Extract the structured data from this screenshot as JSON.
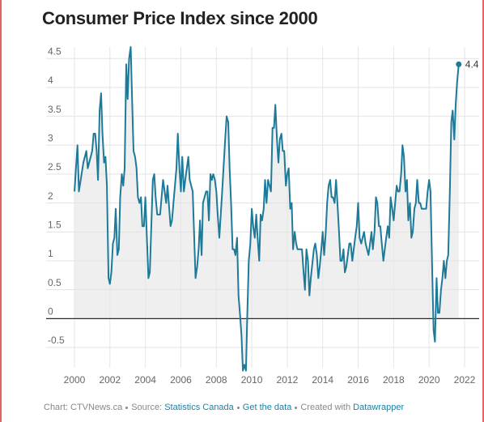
{
  "chart_data": {
    "type": "line",
    "title": "Consumer Price Index since 2000",
    "x": [
      2000.0,
      2000.17,
      2000.25,
      2000.5,
      2000.67,
      2000.75,
      2001.0,
      2001.08,
      2001.17,
      2001.25,
      2001.33,
      2001.42,
      2001.5,
      2001.58,
      2001.67,
      2001.75,
      2001.83,
      2001.92,
      2002.0,
      2002.08,
      2002.17,
      2002.25,
      2002.33,
      2002.42,
      2002.5,
      2002.58,
      2002.67,
      2002.75,
      2002.83,
      2002.92,
      2003.0,
      2003.08,
      2003.17,
      2003.25,
      2003.33,
      2003.42,
      2003.5,
      2003.58,
      2003.67,
      2003.75,
      2003.83,
      2003.92,
      2004.0,
      2004.17,
      2004.25,
      2004.42,
      2004.5,
      2004.58,
      2004.67,
      2004.83,
      2005.0,
      2005.17,
      2005.25,
      2005.42,
      2005.5,
      2005.58,
      2005.75,
      2005.83,
      2005.92,
      2006.0,
      2006.08,
      2006.17,
      2006.25,
      2006.42,
      2006.5,
      2006.67,
      2006.83,
      2006.92,
      2007.0,
      2007.08,
      2007.17,
      2007.25,
      2007.42,
      2007.5,
      2007.58,
      2007.67,
      2007.75,
      2007.83,
      2007.92,
      2008.0,
      2008.08,
      2008.17,
      2008.33,
      2008.5,
      2008.58,
      2008.67,
      2008.75,
      2008.83,
      2008.92,
      2009.0,
      2009.08,
      2009.17,
      2009.25,
      2009.33,
      2009.42,
      2009.5,
      2009.58,
      2009.67,
      2009.75,
      2009.83,
      2009.92,
      2010.0,
      2010.08,
      2010.17,
      2010.25,
      2010.33,
      2010.42,
      2010.5,
      2010.58,
      2010.67,
      2010.75,
      2010.83,
      2010.92,
      2011.0,
      2011.08,
      2011.17,
      2011.25,
      2011.33,
      2011.42,
      2011.5,
      2011.58,
      2011.67,
      2011.75,
      2011.83,
      2011.92,
      2012.0,
      2012.08,
      2012.17,
      2012.25,
      2012.33,
      2012.42,
      2012.5,
      2012.58,
      2012.67,
      2012.83,
      2012.92,
      2013.0,
      2013.08,
      2013.17,
      2013.25,
      2013.33,
      2013.5,
      2013.58,
      2013.67,
      2013.75,
      2013.83,
      2013.92,
      2014.0,
      2014.08,
      2014.17,
      2014.25,
      2014.33,
      2014.42,
      2014.5,
      2014.58,
      2014.67,
      2014.75,
      2014.83,
      2014.92,
      2015.0,
      2015.08,
      2015.17,
      2015.25,
      2015.33,
      2015.5,
      2015.58,
      2015.67,
      2015.83,
      2015.92,
      2016.0,
      2016.08,
      2016.17,
      2016.33,
      2016.42,
      2016.5,
      2016.58,
      2016.67,
      2016.75,
      2016.83,
      2016.92,
      2017.0,
      2017.08,
      2017.17,
      2017.25,
      2017.33,
      2017.42,
      2017.5,
      2017.58,
      2017.67,
      2017.75,
      2017.83,
      2017.92,
      2018.0,
      2018.17,
      2018.25,
      2018.33,
      2018.42,
      2018.5,
      2018.58,
      2018.67,
      2018.75,
      2018.83,
      2018.92,
      2019.0,
      2019.08,
      2019.17,
      2019.25,
      2019.33,
      2019.42,
      2019.5,
      2019.58,
      2019.67,
      2019.83,
      2019.92,
      2020.0,
      2020.08,
      2020.17,
      2020.25,
      2020.33,
      2020.42,
      2020.5,
      2020.58,
      2020.67,
      2020.75,
      2020.83,
      2020.92,
      2021.0,
      2021.08,
      2021.17,
      2021.25,
      2021.33,
      2021.42,
      2021.5,
      2021.58,
      2021.67
    ],
    "values": [
      2.2,
      3.0,
      2.2,
      2.7,
      2.9,
      2.6,
      2.9,
      3.2,
      3.2,
      2.9,
      2.4,
      3.6,
      3.9,
      3.2,
      2.7,
      2.8,
      2.3,
      0.7,
      0.6,
      0.8,
      1.3,
      1.4,
      1.9,
      1.1,
      1.2,
      2.1,
      2.5,
      2.3,
      2.6,
      4.4,
      3.8,
      4.5,
      4.7,
      3.8,
      2.9,
      2.8,
      2.6,
      2.1,
      2.0,
      2.1,
      1.6,
      1.6,
      2.1,
      0.7,
      0.8,
      2.4,
      2.5,
      2.1,
      1.8,
      1.8,
      2.4,
      2.0,
      2.3,
      1.6,
      1.7,
      2.0,
      2.6,
      3.2,
      2.6,
      2.2,
      2.8,
      2.2,
      2.4,
      2.8,
      2.4,
      2.2,
      0.7,
      0.9,
      1.2,
      1.7,
      1.1,
      2.0,
      2.2,
      2.2,
      1.7,
      2.5,
      2.4,
      2.5,
      2.4,
      2.2,
      1.8,
      1.4,
      2.2,
      3.1,
      3.5,
      3.4,
      2.6,
      2.0,
      1.2,
      1.2,
      1.1,
      1.4,
      0.4,
      0.1,
      -0.3,
      -0.9,
      -0.8,
      -0.9,
      0.1,
      1.0,
      1.3,
      1.9,
      1.6,
      1.4,
      1.8,
      1.4,
      1.0,
      1.8,
      1.7,
      1.9,
      2.4,
      2.0,
      2.4,
      2.3,
      2.2,
      3.3,
      3.3,
      3.7,
      3.1,
      2.7,
      3.1,
      3.2,
      2.9,
      2.9,
      2.3,
      2.5,
      2.6,
      1.9,
      2.0,
      1.2,
      1.5,
      1.3,
      1.2,
      1.2,
      1.2,
      0.8,
      0.5,
      1.2,
      1.0,
      0.4,
      0.7,
      1.2,
      1.3,
      1.1,
      0.7,
      0.9,
      1.2,
      1.5,
      1.1,
      1.5,
      2.0,
      2.3,
      2.4,
      2.1,
      2.1,
      2.0,
      2.4,
      2.0,
      1.5,
      1.0,
      1.0,
      1.2,
      0.8,
      0.9,
      1.3,
      1.3,
      1.0,
      1.4,
      1.6,
      2.0,
      1.4,
      1.3,
      1.5,
      1.3,
      1.2,
      1.1,
      1.3,
      1.5,
      1.2,
      1.5,
      2.1,
      2.0,
      1.6,
      1.6,
      1.3,
      1.0,
      1.2,
      1.4,
      1.6,
      1.4,
      2.1,
      1.9,
      1.7,
      2.3,
      2.2,
      2.2,
      2.5,
      3.0,
      2.8,
      2.2,
      2.4,
      1.7,
      2.0,
      1.4,
      1.5,
      1.9,
      2.0,
      2.4,
      2.0,
      2.0,
      1.9,
      1.9,
      1.9,
      2.2,
      2.4,
      2.2,
      0.9,
      -0.2,
      -0.4,
      0.7,
      0.1,
      0.1,
      0.5,
      0.7,
      1.0,
      0.7,
      1.0,
      1.1,
      2.2,
      3.4,
      3.6,
      3.1,
      3.7,
      4.1,
      4.4
    ],
    "color": "#1d7a99",
    "area_color": "#efefef",
    "xlim": [
      2000,
      2022
    ],
    "xticks": [
      2000,
      2002,
      2004,
      2006,
      2008,
      2010,
      2012,
      2014,
      2016,
      2018,
      2020,
      2022
    ],
    "ylim": [
      -0.85,
      4.7
    ],
    "yticks": [
      -0.5,
      0,
      0.5,
      1,
      1.5,
      2,
      2.5,
      3,
      3.5,
      4,
      4.5
    ],
    "grid": true,
    "annotations": [
      {
        "x": 2021.67,
        "y": 4.4
      }
    ],
    "footer": {
      "credit": "Chart: CTVNews.ca",
      "source_label": "Source:",
      "source": "Statistics Canada",
      "get_data": "Get the data",
      "created_with": "Created with",
      "tool": "Datawrapper"
    }
  }
}
